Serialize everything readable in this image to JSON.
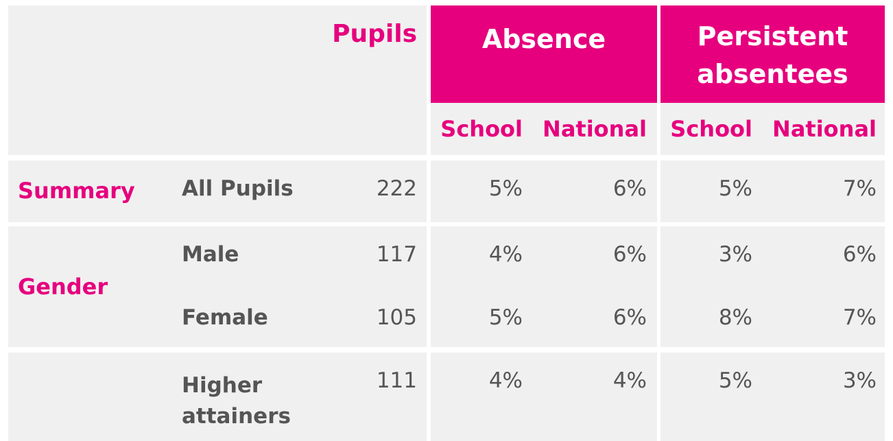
{
  "header": {
    "pupils": "Pupils",
    "absence": "Absence",
    "persistent": "Persistent absentees",
    "sub": [
      "School",
      "National",
      "School",
      "National"
    ]
  },
  "rows": [
    {
      "category": "Summary",
      "group": "All Pupils",
      "pupils": "222",
      "abs_school": "5%",
      "abs_national": "6%",
      "pa_school": "5%",
      "pa_national": "7%"
    },
    {
      "category": "Gender",
      "group": "Male",
      "pupils": "117",
      "abs_school": "4%",
      "abs_national": "6%",
      "pa_school": "3%",
      "pa_national": "6%"
    },
    {
      "category": "",
      "group": "Female",
      "pupils": "105",
      "abs_school": "5%",
      "abs_national": "6%",
      "pa_school": "8%",
      "pa_national": "7%"
    },
    {
      "category": "",
      "group": "Higher attainers",
      "pupils": "111",
      "abs_school": "4%",
      "abs_national": "4%",
      "pa_school": "5%",
      "pa_national": "3%"
    }
  ],
  "colors": {
    "accent": "#e6007e",
    "panel": "#f0f0f0",
    "text": "#555555"
  }
}
